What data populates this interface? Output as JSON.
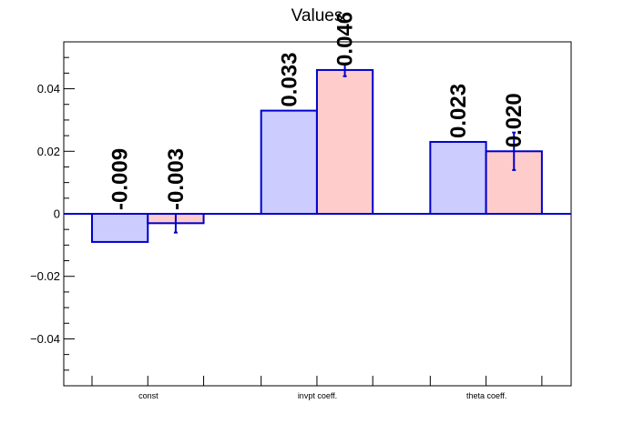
{
  "chart_data": {
    "type": "bar",
    "title": "Values",
    "xlabel": "",
    "ylabel": "",
    "categories": [
      "const",
      "invpt coeff.",
      "theta coeff."
    ],
    "ylim": [
      -0.055,
      0.055
    ],
    "yticks": [
      -0.04,
      -0.02,
      0,
      0.02,
      0.04
    ],
    "ytick_labels": [
      "−0.04",
      "−0.02",
      "0",
      "0.02",
      "0.04"
    ],
    "grid": false,
    "series": [
      {
        "values": [
          -0.009,
          0.033,
          0.023
        ],
        "labels": [
          "-0.009",
          "0.033",
          "0.023"
        ],
        "errors": [
          null,
          null,
          null
        ],
        "color": "#ccccff",
        "edge": "#0000cc"
      },
      {
        "values": [
          -0.003,
          0.046,
          0.02
        ],
        "labels": [
          "-0.003",
          "0.046",
          "0.020"
        ],
        "errors": [
          0.003,
          0.002,
          0.006
        ],
        "color": "#ffcccc",
        "edge": "#0000cc"
      }
    ]
  }
}
